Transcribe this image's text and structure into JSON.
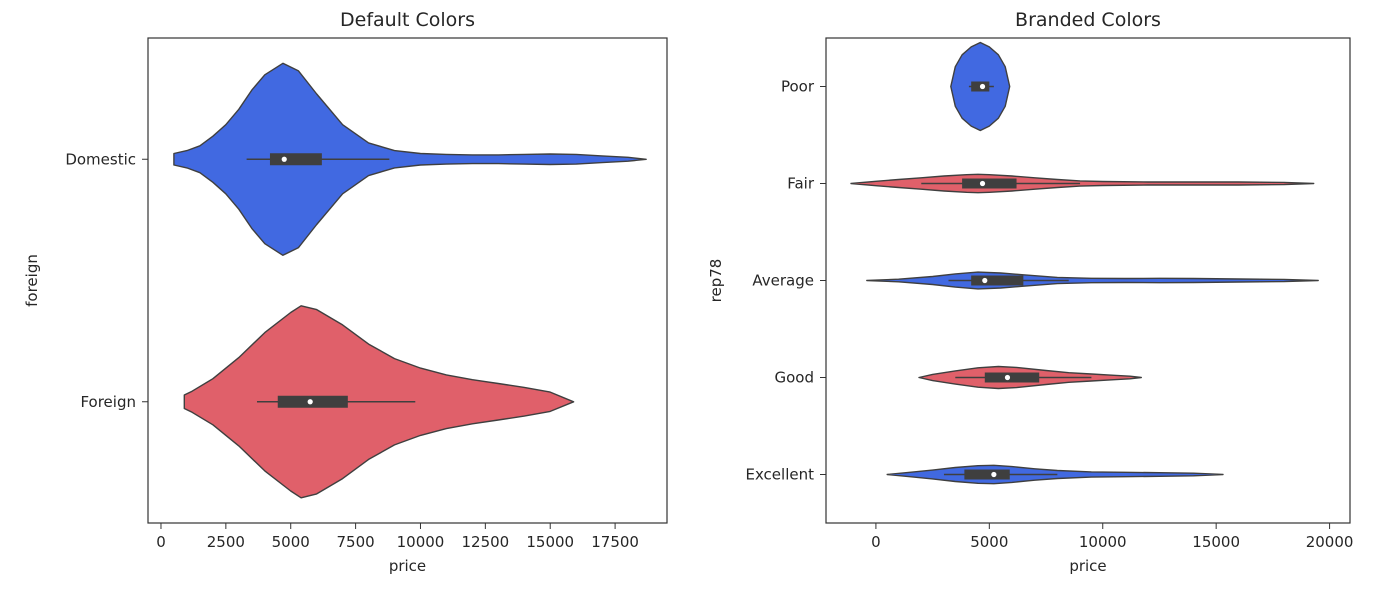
{
  "chart_data": [
    {
      "type": "violin",
      "orientation": "horizontal",
      "title": "Default Colors",
      "xlabel": "price",
      "ylabel": "foreign",
      "xlim": [
        -500,
        19500
      ],
      "xticks": [
        0,
        2500,
        5000,
        7500,
        10000,
        12500,
        15000,
        17500
      ],
      "xtick_labels": [
        "0",
        "2500",
        "5000",
        "7500",
        "10000",
        "12500",
        "15000",
        "17500"
      ],
      "grid": false,
      "categories": [
        "Domestic",
        "Foreign"
      ],
      "violins": [
        {
          "category": "Domestic",
          "color": "#4169e1",
          "min": 500,
          "max": 18700,
          "q1": 4200,
          "median": 4750,
          "q3": 6200,
          "whisker_low": 3300,
          "whisker_high": 8800,
          "profile": [
            [
              500,
              0.06
            ],
            [
              1000,
              0.09
            ],
            [
              1500,
              0.14
            ],
            [
              2000,
              0.24
            ],
            [
              2500,
              0.36
            ],
            [
              3000,
              0.52
            ],
            [
              3500,
              0.72
            ],
            [
              4000,
              0.88
            ],
            [
              4700,
              1.0
            ],
            [
              5300,
              0.92
            ],
            [
              6000,
              0.68
            ],
            [
              7000,
              0.36
            ],
            [
              8000,
              0.17
            ],
            [
              9000,
              0.09
            ],
            [
              10000,
              0.06
            ],
            [
              11000,
              0.05
            ],
            [
              12000,
              0.045
            ],
            [
              13000,
              0.045
            ],
            [
              14000,
              0.05
            ],
            [
              15000,
              0.055
            ],
            [
              16000,
              0.05
            ],
            [
              17000,
              0.035
            ],
            [
              18000,
              0.02
            ],
            [
              18700,
              0.0
            ]
          ]
        },
        {
          "category": "Foreign",
          "color": "#e0606a",
          "min": 900,
          "max": 15900,
          "q1": 4500,
          "median": 5750,
          "q3": 7200,
          "whisker_low": 3700,
          "whisker_high": 9800,
          "profile": [
            [
              900,
              0.07
            ],
            [
              1200,
              0.11
            ],
            [
              2000,
              0.24
            ],
            [
              3000,
              0.46
            ],
            [
              4000,
              0.72
            ],
            [
              5000,
              0.93
            ],
            [
              5400,
              1.0
            ],
            [
              6000,
              0.96
            ],
            [
              7000,
              0.8
            ],
            [
              8000,
              0.6
            ],
            [
              9000,
              0.45
            ],
            [
              10000,
              0.35
            ],
            [
              11000,
              0.28
            ],
            [
              12000,
              0.23
            ],
            [
              13000,
              0.19
            ],
            [
              14000,
              0.15
            ],
            [
              15000,
              0.1
            ],
            [
              15900,
              0.0
            ]
          ]
        }
      ]
    },
    {
      "type": "violin",
      "orientation": "horizontal",
      "title": "Branded Colors",
      "xlabel": "price",
      "ylabel": "rep78",
      "xlim": [
        -2200,
        20900
      ],
      "xticks": [
        0,
        5000,
        10000,
        15000,
        20000
      ],
      "xtick_labels": [
        "0",
        "5000",
        "10000",
        "15000",
        "20000"
      ],
      "grid": false,
      "categories": [
        "Poor",
        "Fair",
        "Average",
        "Good",
        "Excellent"
      ],
      "violins": [
        {
          "category": "Poor",
          "color": "#4169e1",
          "min": 3300,
          "max": 5900,
          "q1": 4200,
          "median": 4700,
          "q3": 5000,
          "whisker_low": 4100,
          "whisker_high": 5200,
          "profile": [
            [
              3300,
              0.0
            ],
            [
              3500,
              0.45
            ],
            [
              3800,
              0.72
            ],
            [
              4200,
              0.9
            ],
            [
              4600,
              1.0
            ],
            [
              5000,
              0.9
            ],
            [
              5400,
              0.72
            ],
            [
              5700,
              0.45
            ],
            [
              5900,
              0.0
            ]
          ]
        },
        {
          "category": "Fair",
          "color": "#e0606a",
          "min": -1100,
          "max": 19300,
          "q1": 3800,
          "median": 4700,
          "q3": 6200,
          "whisker_low": 2000,
          "whisker_high": 9000,
          "profile": [
            [
              -1100,
              0.0
            ],
            [
              0,
              0.05
            ],
            [
              1000,
              0.09
            ],
            [
              2000,
              0.13
            ],
            [
              3000,
              0.17
            ],
            [
              4000,
              0.2
            ],
            [
              4500,
              0.21
            ],
            [
              5000,
              0.2
            ],
            [
              6000,
              0.17
            ],
            [
              7000,
              0.13
            ],
            [
              8000,
              0.09
            ],
            [
              9000,
              0.06
            ],
            [
              10000,
              0.045
            ],
            [
              12000,
              0.035
            ],
            [
              14000,
              0.035
            ],
            [
              16000,
              0.035
            ],
            [
              18000,
              0.025
            ],
            [
              19300,
              0.0
            ]
          ]
        },
        {
          "category": "Average",
          "color": "#4169e1",
          "min": -400,
          "max": 19500,
          "q1": 4200,
          "median": 4800,
          "q3": 6500,
          "whisker_low": 3200,
          "whisker_high": 8500,
          "profile": [
            [
              -400,
              0.0
            ],
            [
              1000,
              0.03
            ],
            [
              2500,
              0.09
            ],
            [
              3500,
              0.15
            ],
            [
              4500,
              0.19
            ],
            [
              5500,
              0.17
            ],
            [
              6500,
              0.13
            ],
            [
              8000,
              0.07
            ],
            [
              9500,
              0.05
            ],
            [
              11000,
              0.045
            ],
            [
              12500,
              0.05
            ],
            [
              14000,
              0.045
            ],
            [
              16000,
              0.035
            ],
            [
              18000,
              0.025
            ],
            [
              19500,
              0.0
            ]
          ]
        },
        {
          "category": "Good",
          "color": "#e0606a",
          "min": 1900,
          "max": 11700,
          "q1": 4800,
          "median": 5800,
          "q3": 7200,
          "whisker_low": 3500,
          "whisker_high": 9500,
          "profile": [
            [
              1900,
              0.0
            ],
            [
              2500,
              0.07
            ],
            [
              3500,
              0.15
            ],
            [
              4500,
              0.22
            ],
            [
              5400,
              0.25
            ],
            [
              6200,
              0.23
            ],
            [
              7500,
              0.16
            ],
            [
              8500,
              0.11
            ],
            [
              9500,
              0.08
            ],
            [
              10500,
              0.05
            ],
            [
              11200,
              0.03
            ],
            [
              11700,
              0.0
            ]
          ]
        },
        {
          "category": "Excellent",
          "color": "#4169e1",
          "min": 500,
          "max": 15300,
          "q1": 3900,
          "median": 5200,
          "q3": 5900,
          "whisker_low": 3000,
          "whisker_high": 8000,
          "profile": [
            [
              500,
              0.0
            ],
            [
              1500,
              0.05
            ],
            [
              2500,
              0.1
            ],
            [
              3500,
              0.16
            ],
            [
              4500,
              0.2
            ],
            [
              5200,
              0.21
            ],
            [
              6000,
              0.18
            ],
            [
              7000,
              0.13
            ],
            [
              8000,
              0.09
            ],
            [
              9500,
              0.06
            ],
            [
              11000,
              0.05
            ],
            [
              12500,
              0.04
            ],
            [
              14000,
              0.03
            ],
            [
              15300,
              0.0
            ]
          ]
        }
      ]
    }
  ]
}
